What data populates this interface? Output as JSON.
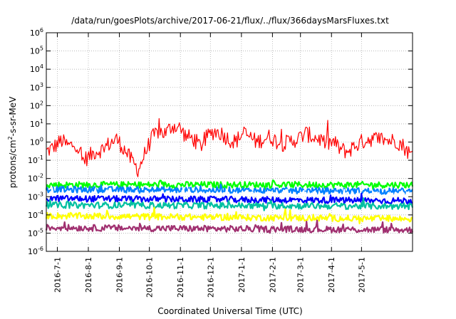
{
  "chart_data": {
    "type": "line",
    "title": "/data/run/goesPlots/archive/2017-06-21/flux/../flux/366daysMarsFluxes.txt",
    "xlabel": "Coordinated Universal Time (UTC)",
    "ylabel_parts": [
      "protons/cm",
      "2",
      "-s-sr-MeV"
    ],
    "x_range": [
      "2016-06-20",
      "2017-06-21"
    ],
    "y_scale": "log",
    "ylim": [
      1e-06,
      1000000.0
    ],
    "grid": true,
    "legend": "none",
    "x_ticks": [
      {
        "date": "2016-07-01",
        "label": "2016-7-1"
      },
      {
        "date": "2016-08-01",
        "label": "2016-8-1"
      },
      {
        "date": "2016-09-01",
        "label": "2016-9-1"
      },
      {
        "date": "2016-10-01",
        "label": "2016-10-1"
      },
      {
        "date": "2016-11-01",
        "label": "2016-11-1"
      },
      {
        "date": "2016-12-01",
        "label": "2016-12-1"
      },
      {
        "date": "2017-01-01",
        "label": "2017-1-1"
      },
      {
        "date": "2017-02-01",
        "label": "2017-2-1"
      },
      {
        "date": "2017-03-01",
        "label": "2017-3-1"
      },
      {
        "date": "2017-04-01",
        "label": "2017-4-1"
      },
      {
        "date": "2017-05-01",
        "label": "2017-5-1"
      }
    ],
    "y_ticks": [
      {
        "value": 1e-06,
        "base": "10",
        "exp": "-6"
      },
      {
        "value": 1e-05,
        "base": "10",
        "exp": "-5"
      },
      {
        "value": 0.0001,
        "base": "10",
        "exp": "-4"
      },
      {
        "value": 0.001,
        "base": "10",
        "exp": "-3"
      },
      {
        "value": 0.01,
        "base": "10",
        "exp": "-2"
      },
      {
        "value": 0.1,
        "base": "10",
        "exp": "-1"
      },
      {
        "value": 1.0,
        "base": "10",
        "exp": "0"
      },
      {
        "value": 10.0,
        "base": "10",
        "exp": "1"
      },
      {
        "value": 100.0,
        "base": "10",
        "exp": "2"
      },
      {
        "value": 1000.0,
        "base": "10",
        "exp": "3"
      },
      {
        "value": 10000.0,
        "base": "10",
        "exp": "4"
      },
      {
        "value": 100000.0,
        "base": "10",
        "exp": "5"
      },
      {
        "value": 1000000.0,
        "base": "10",
        "exp": "6"
      }
    ],
    "series": [
      {
        "color": "#ff0000",
        "x": [
          "2016-06-20",
          "2016-06-27",
          "2016-07-05",
          "2016-07-12",
          "2016-07-20",
          "2016-07-26",
          "2016-08-01",
          "2016-08-08",
          "2016-08-15",
          "2016-08-22",
          "2016-08-29",
          "2016-09-06",
          "2016-09-13",
          "2016-09-20",
          "2016-09-26",
          "2016-10-03",
          "2016-10-10",
          "2016-10-17",
          "2016-10-24",
          "2016-10-31",
          "2016-11-07",
          "2016-11-14",
          "2016-11-21",
          "2016-11-28",
          "2016-12-05",
          "2016-12-12",
          "2016-12-19",
          "2016-12-26",
          "2017-01-02",
          "2017-01-09",
          "2017-01-16",
          "2017-01-23",
          "2017-01-30",
          "2017-02-06",
          "2017-02-13",
          "2017-02-20",
          "2017-02-27",
          "2017-03-06",
          "2017-03-13",
          "2017-03-20",
          "2017-03-27",
          "2017-04-03",
          "2017-04-10",
          "2017-04-17",
          "2017-04-24",
          "2017-05-01",
          "2017-05-08",
          "2017-05-15",
          "2017-05-22",
          "2017-05-29",
          "2017-06-05",
          "2017-06-12",
          "2017-06-21"
        ],
        "values": [
          0.3,
          0.5,
          1.2,
          0.6,
          0.8,
          0.1,
          0.15,
          0.3,
          0.4,
          0.8,
          1.5,
          0.4,
          0.1,
          0.03,
          0.2,
          1.5,
          4,
          3,
          8,
          6,
          2,
          1.5,
          0.6,
          2,
          4,
          3,
          1.5,
          1,
          3,
          2,
          1,
          1.5,
          2,
          1,
          0.8,
          1.2,
          1.5,
          3,
          2,
          1.5,
          0.8,
          1,
          0.4,
          0.3,
          0.6,
          1,
          1.5,
          1.5,
          1.5,
          1.2,
          1.2,
          0.6,
          0.15
        ]
      },
      {
        "color": "#00ff00",
        "x": [
          "2016-06-20",
          "2017-06-21"
        ],
        "values": [
          0.0045,
          0.0045
        ]
      },
      {
        "color": "#0080ff",
        "x": [
          "2016-06-20",
          "2017-06-21"
        ],
        "values": [
          0.0025,
          0.002
        ]
      },
      {
        "color": "#ffffff",
        "x": [
          "2016-06-20",
          "2017-06-21"
        ],
        "values": [
          0.0012,
          0.0012
        ]
      },
      {
        "color": "#0000ff",
        "x": [
          "2016-06-20",
          "2017-06-21"
        ],
        "values": [
          0.0008,
          0.0006
        ]
      },
      {
        "color": "#00c0a0",
        "x": [
          "2016-06-20",
          "2017-06-21"
        ],
        "values": [
          0.00035,
          0.0003
        ]
      },
      {
        "color": "#ffff00",
        "x": [
          "2016-06-20",
          "2017-06-21"
        ],
        "values": [
          9e-05,
          6e-05
        ]
      },
      {
        "color": "#a03070",
        "x": [
          "2016-06-20",
          "2017-06-21"
        ],
        "values": [
          2e-05,
          1.5e-05
        ]
      }
    ]
  }
}
